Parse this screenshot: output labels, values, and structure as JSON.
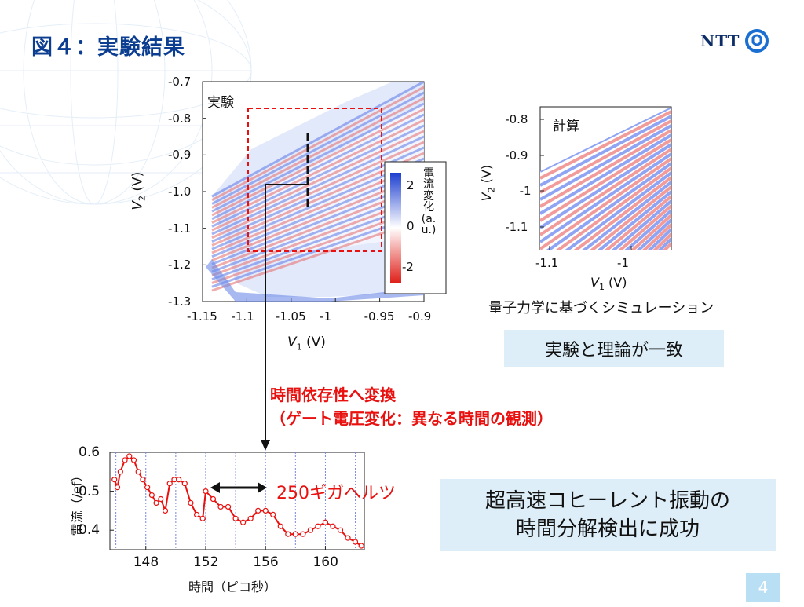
{
  "slide_title": "図４：実験結果",
  "logo_text": "NTT",
  "page_number": "4",
  "experiment_plot": {
    "label": "実験",
    "xlabel": "V1 (V)",
    "ylabel": "V2 (V)",
    "xticks": [
      "-1.15",
      "-1.1",
      "-1.05",
      "-1",
      "-0.95",
      "-0.9"
    ],
    "yticks": [
      "-0.7",
      "-0.8",
      "-0.9",
      "-1.0",
      "-1.1",
      "-1.2",
      "-1.3"
    ],
    "xlim": [
      -1.15,
      -0.9
    ],
    "ylim": [
      -1.3,
      -0.7
    ],
    "colorbar_label": "電流変化(a.u.)",
    "colorbar_ticks": [
      "2",
      "0",
      "-2"
    ]
  },
  "simulation_plot": {
    "label": "計算",
    "xlabel": "V1 (V)",
    "ylabel": "V2 (V)",
    "xticks": [
      "-1.1",
      "-1"
    ],
    "yticks": [
      "-0.8",
      "-0.9",
      "-1",
      "-1.1"
    ],
    "caption": "量子力学に基づくシミュレーション"
  },
  "conclusion_box_1": "実験と理論が一致",
  "transform_text": {
    "line1": "時間依存性へ変換",
    "line2": "（ゲート電圧変化：異なる時間の観測）"
  },
  "frequency_label": "250ギガヘルツ",
  "conclusion_box_2": {
    "line1": "超高速コヒーレント振動の",
    "line2": "時間分解検出に成功"
  },
  "colors": {
    "title_blue": "#0b3d91",
    "accent_red": "#e8110f",
    "box_blue": "#ddeef8"
  },
  "chart_data": {
    "type": "line",
    "xlabel": "時間（ピコ秒）",
    "ylabel": "電流（/ef）",
    "xlim": [
      145.6,
      162.6
    ],
    "ylim": [
      0.35,
      0.6
    ],
    "xticks": [
      "148",
      "152",
      "156",
      "160"
    ],
    "yticks": [
      "0.6",
      "0.5",
      "0.4"
    ],
    "grid": "vertical dotted",
    "x": [
      145.9,
      146.1,
      146.3,
      146.6,
      146.9,
      147.2,
      147.5,
      147.8,
      148.1,
      148.4,
      148.7,
      149.0,
      149.3,
      149.6,
      149.9,
      150.2,
      150.6,
      151.0,
      151.4,
      151.8,
      152.0,
      152.5,
      153.0,
      153.5,
      154.0,
      154.5,
      155.0,
      155.5,
      156.0,
      156.5,
      157.0,
      157.5,
      158.0,
      158.5,
      159.0,
      159.5,
      160.0,
      160.5,
      161.0,
      161.5,
      162.0,
      162.4
    ],
    "values": [
      0.53,
      0.51,
      0.55,
      0.58,
      0.59,
      0.58,
      0.55,
      0.53,
      0.51,
      0.49,
      0.47,
      0.48,
      0.45,
      0.52,
      0.53,
      0.53,
      0.52,
      0.47,
      0.44,
      0.43,
      0.5,
      0.48,
      0.46,
      0.46,
      0.43,
      0.42,
      0.43,
      0.45,
      0.45,
      0.44,
      0.41,
      0.39,
      0.39,
      0.39,
      0.4,
      0.41,
      0.42,
      0.41,
      0.4,
      0.38,
      0.37,
      0.36
    ]
  }
}
